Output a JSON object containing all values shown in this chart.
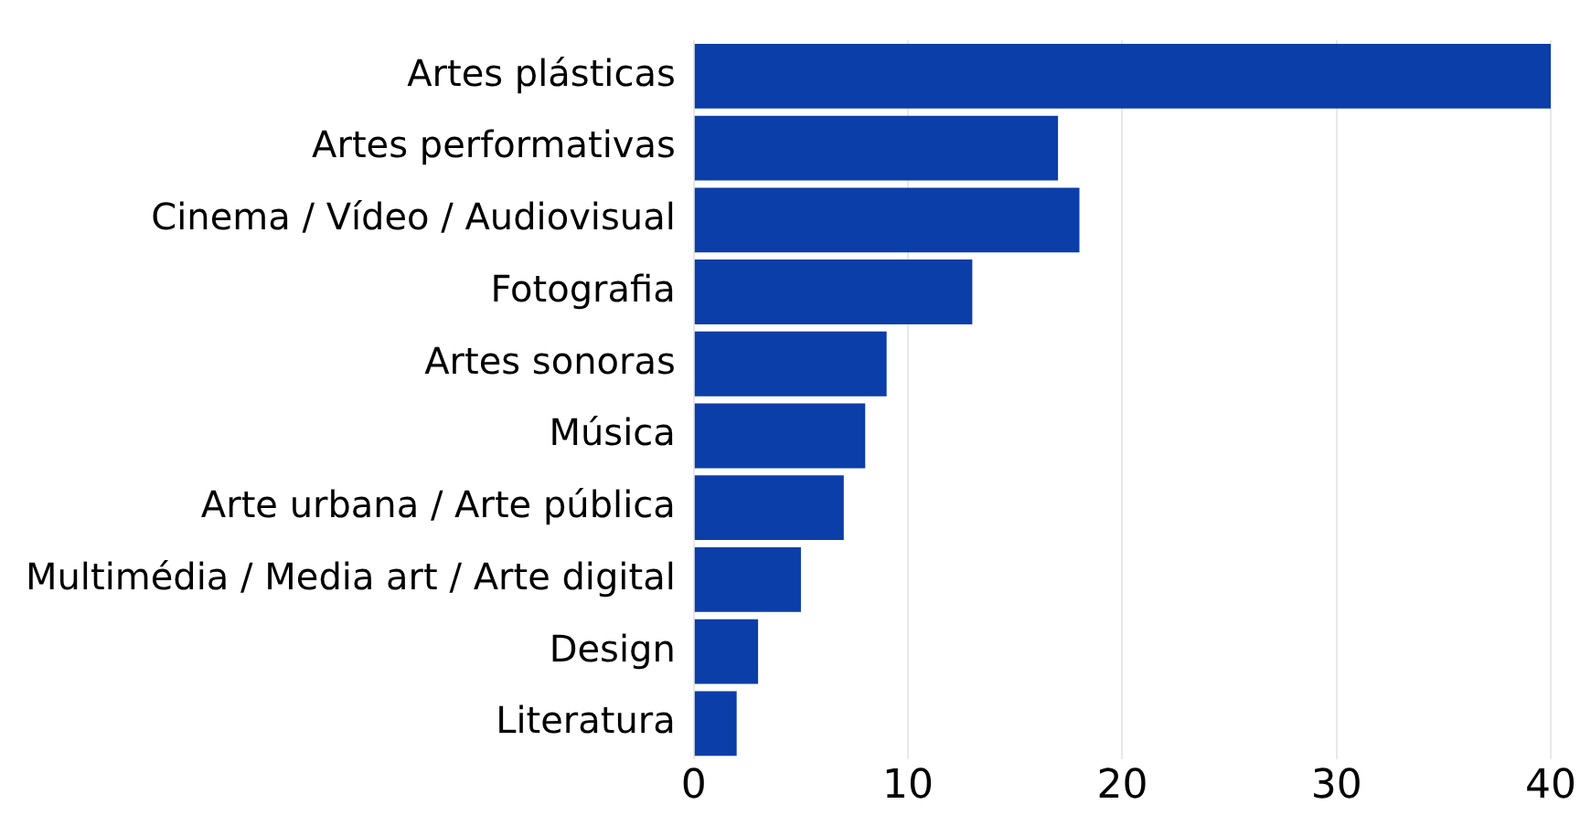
{
  "chart_data": {
    "type": "bar",
    "orientation": "horizontal",
    "categories": [
      "Artes plásticas",
      "Artes performativas",
      "Cinema / Vídeo / Audiovisual",
      "Fotografia",
      "Artes sonoras",
      "Música",
      "Arte urbana / Arte pública",
      "Multimédia / Media art / Arte digital",
      "Design",
      "Literatura"
    ],
    "values": [
      40,
      17,
      18,
      13,
      9,
      8,
      7,
      5,
      3,
      2
    ],
    "color": "#0b3ea8",
    "xlim": [
      0,
      40
    ],
    "xticks": [
      0,
      10,
      20,
      30,
      40
    ],
    "grid": "x",
    "legend": false
  }
}
